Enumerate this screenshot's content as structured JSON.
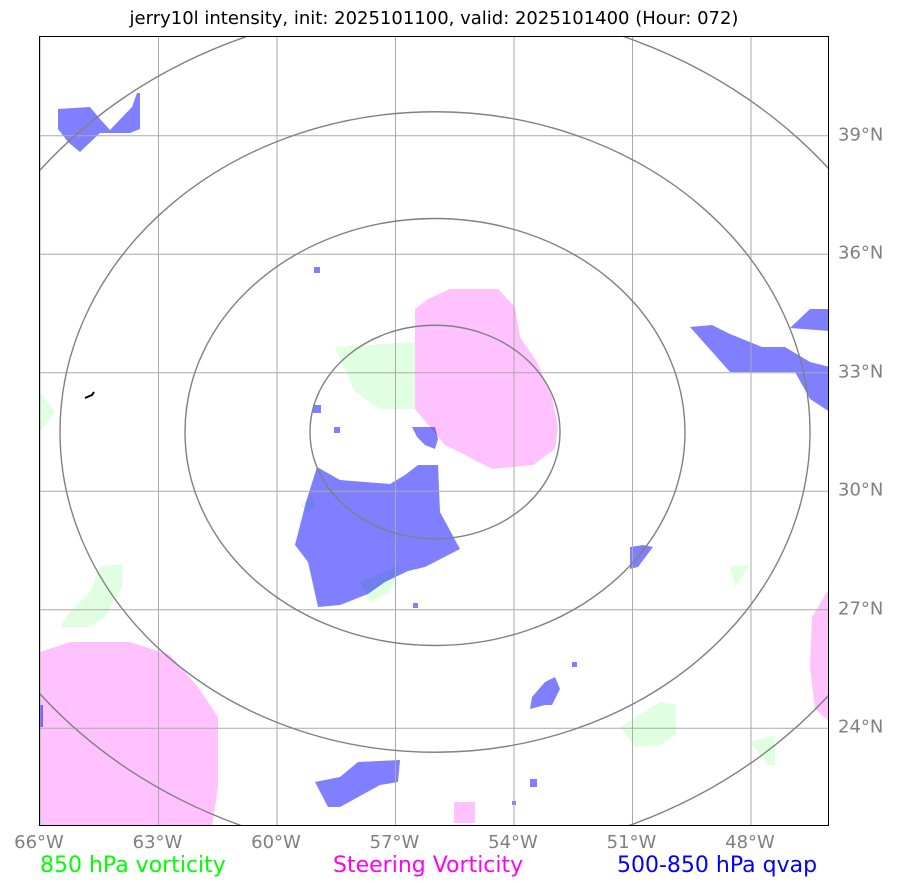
{
  "title": "jerry10l intensity, init: 2025101100, valid: 2025101400 (Hour: 072)",
  "map": {
    "lon_labels": [
      "66°W",
      "63°W",
      "60°W",
      "57°W",
      "54°W",
      "51°W",
      "48°W"
    ],
    "lat_labels": [
      "39°N",
      "36°N",
      "33°N",
      "30°N",
      "27°N",
      "24°N"
    ],
    "lon_range": [
      -66,
      -46
    ],
    "lat_range": [
      21.5,
      41.5
    ],
    "storm_center": {
      "lon": -56,
      "lat": 31.5
    },
    "range_rings": 4,
    "grid": true,
    "colors": {
      "vorticity_850": "#00ff00",
      "steering_vorticity": "#ff00ff",
      "qvap": "#0000ff"
    }
  },
  "legend": {
    "vorticity_850": "850 hPa vorticity",
    "steering_vorticity": "Steering Vorticity",
    "qvap": "500-850 hPa qvap"
  }
}
